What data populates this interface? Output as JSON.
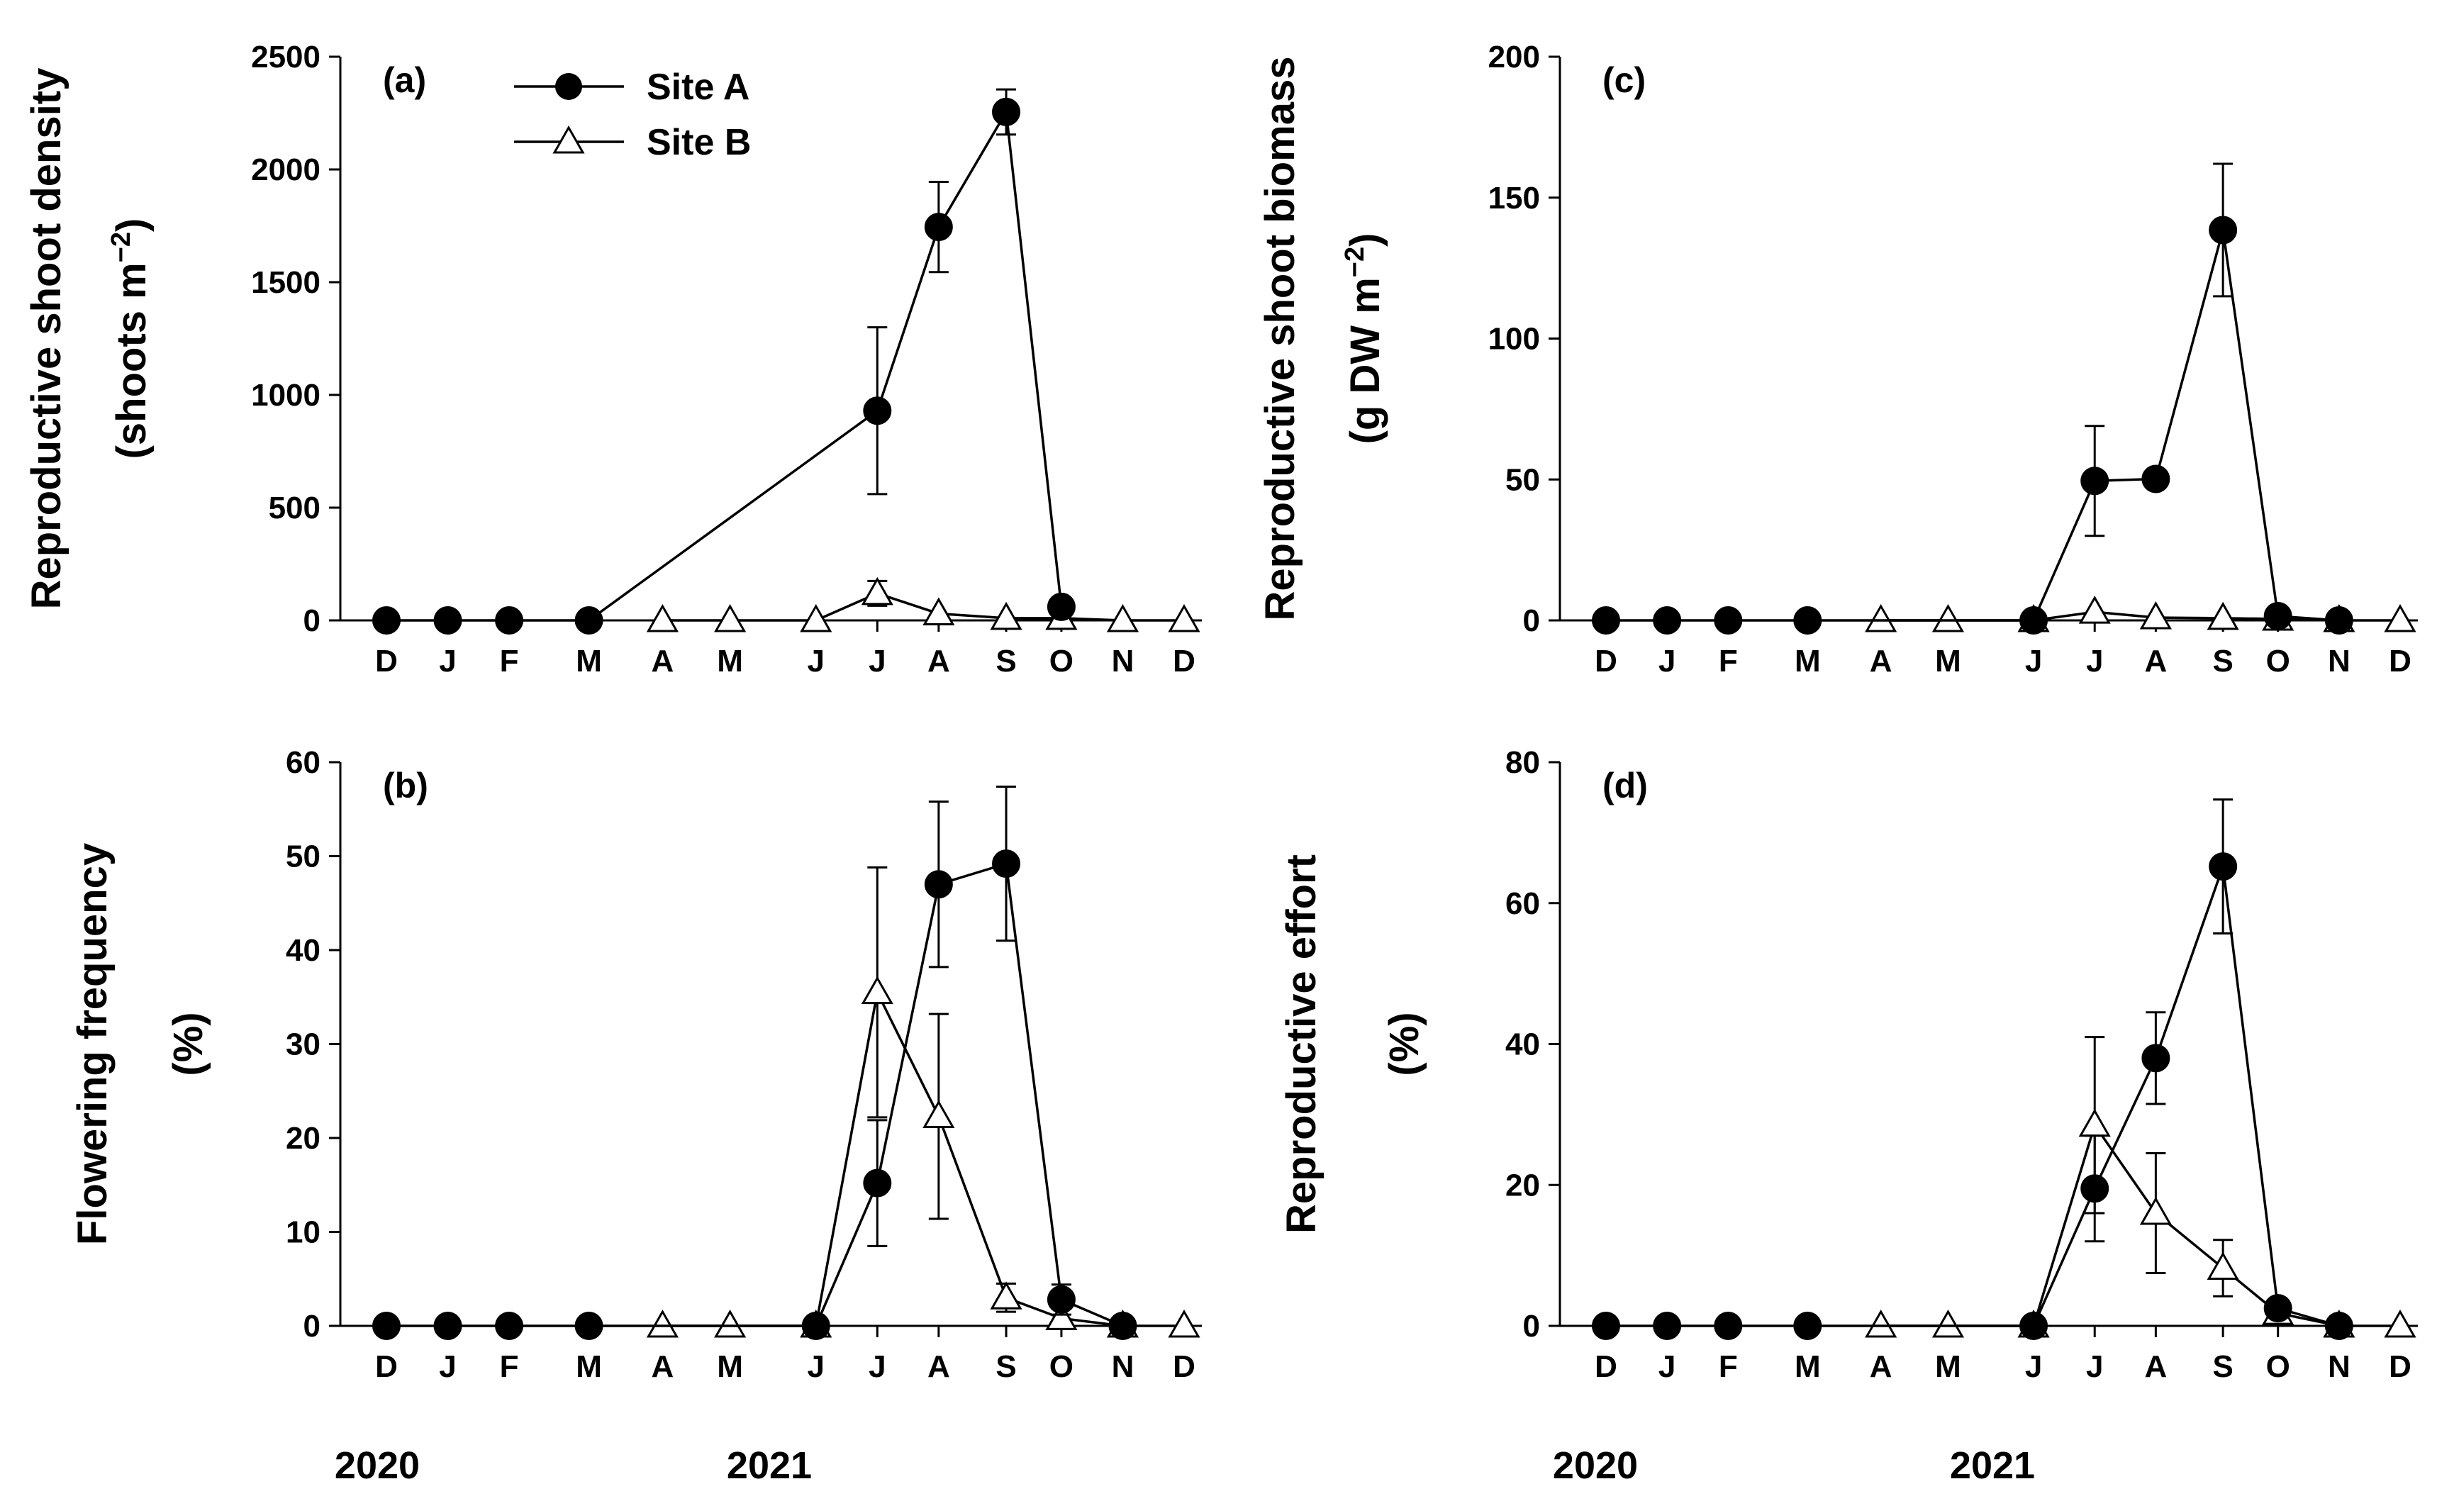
{
  "chart_data": [
    {
      "panel": "a",
      "panel_label": "(a)",
      "type": "line",
      "ylabel": [
        "Reproductive shoot density",
        "(shoots m",
        "−2",
        ")"
      ],
      "ylim": [
        0,
        2500
      ],
      "yticks": [
        "0",
        "500",
        "1000",
        "1500",
        "2000",
        "2500"
      ],
      "x": [
        0,
        1,
        2,
        3.3,
        4.5,
        5.6,
        7.0,
        8.0,
        9.0,
        10.1,
        11.0,
        12.0,
        13.0
      ],
      "xtick_labels": [
        "D",
        "J",
        "F",
        "M",
        "A",
        "M",
        "J",
        "J",
        "A",
        "S",
        "O",
        "N",
        "D"
      ],
      "series": [
        {
          "name": "Site A",
          "marker": "circle",
          "x": [
            0,
            1,
            2,
            3.3,
            8.0,
            9.0,
            10.1,
            11.0
          ],
          "values": [
            0,
            0,
            0,
            0,
            930,
            1745,
            2255,
            60
          ],
          "err": [
            0,
            0,
            0,
            0,
            370,
            200,
            100,
            20
          ]
        },
        {
          "name": "Site B",
          "marker": "triangle",
          "x": [
            4.5,
            5.6,
            7.0,
            8.0,
            9.0,
            10.1,
            11.0,
            12.0,
            13.0
          ],
          "values": [
            0,
            0,
            0,
            120,
            30,
            10,
            10,
            0,
            0
          ],
          "err": [
            0,
            0,
            0,
            55,
            0,
            0,
            0,
            0,
            0
          ]
        }
      ]
    },
    {
      "panel": "b",
      "panel_label": "(b)",
      "type": "line",
      "ylabel": [
        "Flowering frequency",
        "(%)"
      ],
      "ylim": [
        0,
        60
      ],
      "yticks": [
        "0",
        "10",
        "20",
        "30",
        "40",
        "50",
        "60"
      ],
      "x": [
        0,
        1,
        2,
        3.3,
        4.5,
        5.6,
        7.0,
        8.0,
        9.0,
        10.1,
        11.0,
        12.0,
        13.0
      ],
      "xtick_labels": [
        "D",
        "J",
        "F",
        "M",
        "A",
        "M",
        "J",
        "J",
        "A",
        "S",
        "O",
        "N",
        "D"
      ],
      "series": [
        {
          "name": "Site A",
          "marker": "circle",
          "x": [
            0,
            1,
            2,
            3.3,
            7.0,
            8.0,
            9.0,
            10.1,
            11.0,
            12.0
          ],
          "values": [
            0,
            0,
            0,
            0,
            0,
            15.2,
            47.0,
            49.2,
            2.8,
            0
          ],
          "err": [
            0,
            0,
            0,
            0,
            0,
            6.7,
            8.8,
            8.2,
            1.6,
            0
          ]
        },
        {
          "name": "Site B",
          "marker": "triangle",
          "x": [
            4.5,
            5.6,
            7.0,
            8.0,
            9.0,
            10.1,
            11.0,
            12.0,
            13.0
          ],
          "values": [
            0,
            0,
            0,
            35.5,
            22.3,
            3.0,
            0.8,
            0,
            0
          ],
          "err": [
            0,
            0,
            0,
            13.3,
            10.9,
            1.5,
            0,
            0,
            0
          ]
        }
      ]
    },
    {
      "panel": "c",
      "panel_label": "(c)",
      "type": "line",
      "ylabel": [
        "Reproductive shoot biomass",
        "(g DW m",
        "−2",
        ")"
      ],
      "ylim": [
        0,
        200
      ],
      "yticks": [
        "0",
        "50",
        "100",
        "150",
        "200"
      ],
      "x": [
        0,
        1,
        2,
        3.3,
        4.5,
        5.6,
        7.0,
        8.0,
        9.0,
        10.1,
        11.0,
        12.0,
        13.0
      ],
      "xtick_labels": [
        "D",
        "J",
        "F",
        "M",
        "A",
        "M",
        "J",
        "J",
        "A",
        "S",
        "O",
        "N",
        "D"
      ],
      "series": [
        {
          "name": "Site A",
          "marker": "circle",
          "x": [
            0,
            1,
            2,
            3.3,
            7.0,
            8.0,
            9.0,
            10.1,
            11.0,
            12.0
          ],
          "values": [
            0,
            0,
            0,
            0,
            0,
            49.5,
            50.2,
            138.5,
            1.5,
            0
          ],
          "err": [
            0,
            0,
            0,
            0,
            0,
            19.5,
            2.5,
            23.5,
            0.5,
            0
          ]
        },
        {
          "name": "Site B",
          "marker": "triangle",
          "x": [
            4.5,
            5.6,
            7.0,
            8.0,
            9.0,
            10.1,
            11.0,
            12.0,
            13.0
          ],
          "values": [
            0,
            0,
            0,
            3.0,
            1.0,
            0.8,
            0.5,
            0,
            0
          ],
          "err": [
            0,
            0,
            0,
            0,
            0,
            0,
            0,
            0,
            0
          ]
        }
      ]
    },
    {
      "panel": "d",
      "panel_label": "(d)",
      "type": "line",
      "ylabel": [
        "Reproductive effort",
        "(%)"
      ],
      "ylim": [
        0,
        80
      ],
      "yticks": [
        "0",
        "20",
        "40",
        "60",
        "80"
      ],
      "x": [
        0,
        1,
        2,
        3.3,
        4.5,
        5.6,
        7.0,
        8.0,
        9.0,
        10.1,
        11.0,
        12.0,
        13.0
      ],
      "xtick_labels": [
        "D",
        "J",
        "F",
        "M",
        "A",
        "M",
        "J",
        "J",
        "A",
        "S",
        "O",
        "N",
        "D"
      ],
      "series": [
        {
          "name": "Site A",
          "marker": "circle",
          "x": [
            0,
            1,
            2,
            3.3,
            7.0,
            8.0,
            9.0,
            10.1,
            11.0,
            12.0
          ],
          "values": [
            0,
            0,
            0,
            0,
            0,
            19.5,
            38.0,
            65.2,
            2.5,
            0
          ],
          "err": [
            0,
            0,
            0,
            0,
            0,
            7.5,
            6.5,
            9.5,
            1.0,
            0
          ]
        },
        {
          "name": "Site B",
          "marker": "triangle",
          "x": [
            4.5,
            5.6,
            7.0,
            8.0,
            9.0,
            10.1,
            11.0,
            12.0,
            13.0
          ],
          "values": [
            0,
            0,
            0,
            28.5,
            16.0,
            8.2,
            1.8,
            0,
            0
          ],
          "err": [
            0,
            0,
            0,
            12.5,
            8.5,
            4.0,
            0,
            0,
            0
          ]
        }
      ]
    }
  ],
  "legend": {
    "items": [
      "Site A",
      "Site B"
    ]
  },
  "year_labels": [
    "2020",
    "2021"
  ]
}
